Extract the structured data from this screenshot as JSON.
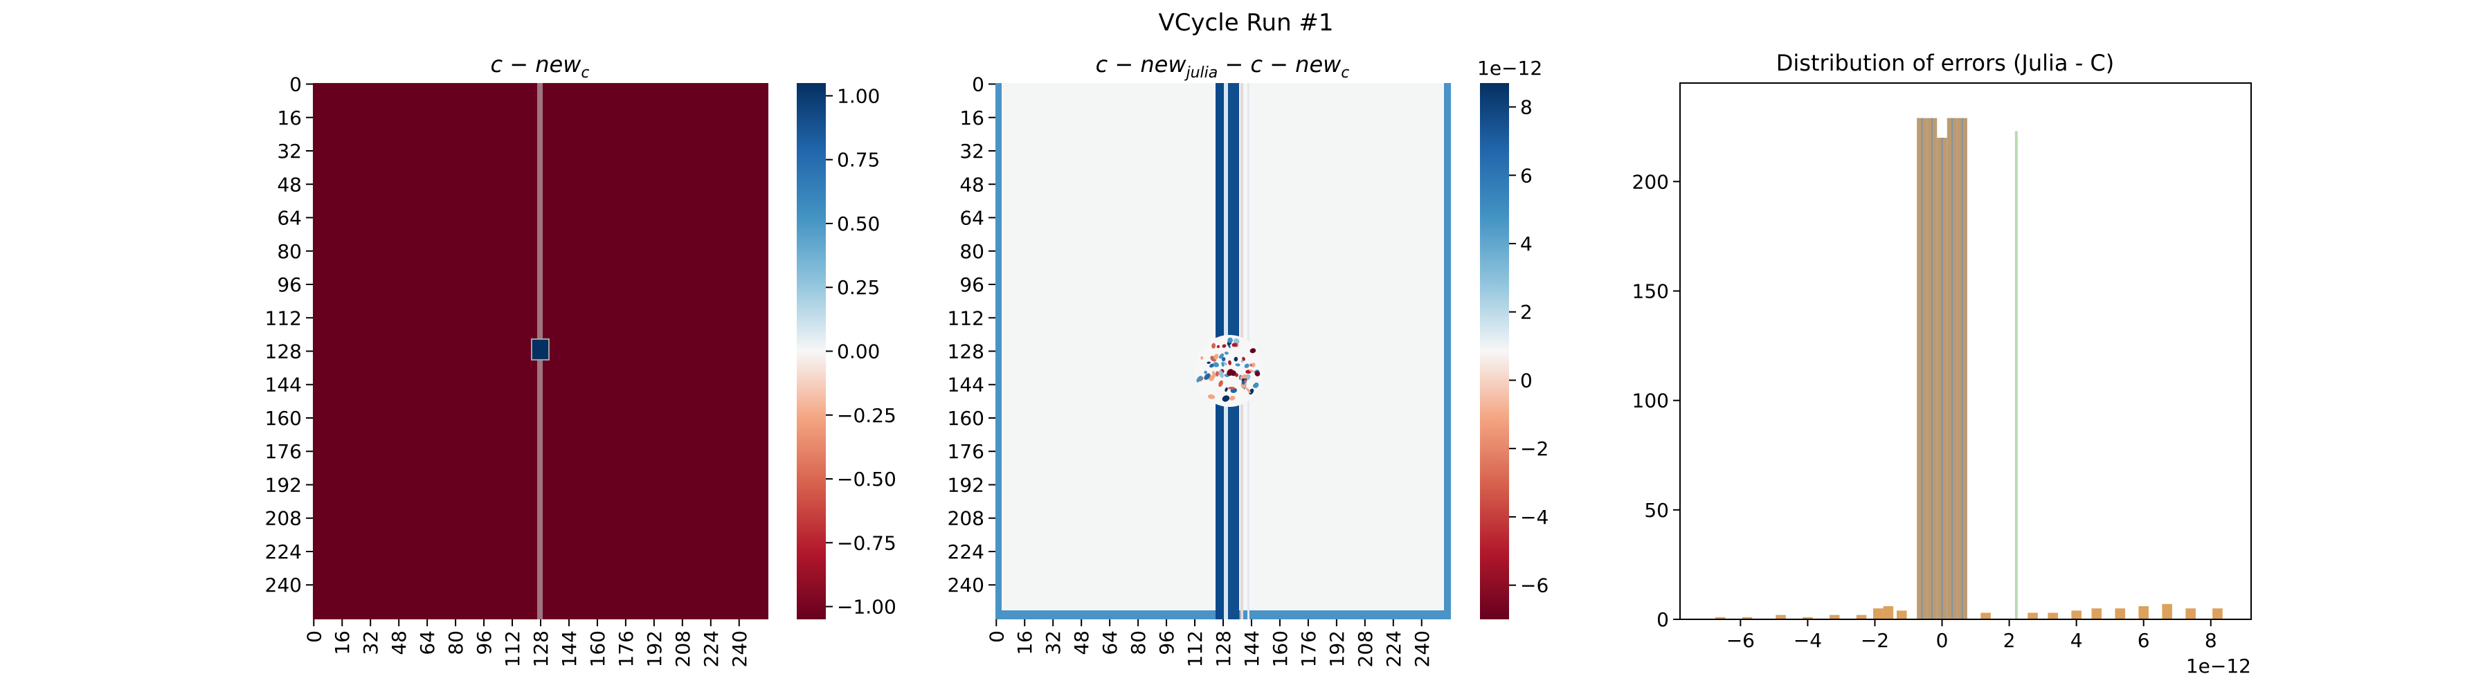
{
  "figure": {
    "title": "VCycle Run #1"
  },
  "colors": {
    "cmap_low": "#67001f",
    "cmap_mid": "#f7f7f7",
    "cmap_high": "#053061",
    "bar_orange": "#d6903f",
    "bar_green": "#7bbf73",
    "bar_blue": "#5b8fc2"
  },
  "chart_data": [
    {
      "type": "heatmap",
      "title": "c - new_c",
      "title_parts": {
        "base": "c − new",
        "sub": "c"
      },
      "y_ticks": [
        "0",
        "16",
        "32",
        "48",
        "64",
        "80",
        "96",
        "112",
        "128",
        "144",
        "160",
        "176",
        "192",
        "208",
        "224",
        "240"
      ],
      "x_ticks": [
        "0",
        "16",
        "32",
        "48",
        "64",
        "80",
        "96",
        "112",
        "128",
        "144",
        "160",
        "176",
        "192",
        "208",
        "224",
        "240"
      ],
      "grid_size": 257,
      "background_value": -1.0,
      "features": [
        {
          "kind": "column",
          "col": 128,
          "value": 0.0
        },
        {
          "kind": "block",
          "row": 128,
          "col": 128,
          "value": 1.0
        }
      ],
      "colorbar": {
        "min": -1.0,
        "max": 1.0,
        "ticks": [
          1.0,
          0.75,
          0.5,
          0.25,
          0.0,
          -0.25,
          -0.5,
          -0.75,
          -1.0
        ],
        "tick_labels": [
          "1.00",
          "0.75",
          "0.50",
          "0.25",
          "0.00",
          "−0.25",
          "−0.50",
          "−0.75",
          "−1.00"
        ]
      }
    },
    {
      "type": "heatmap",
      "title": "c - new_julia - c - new_c",
      "title_parts": {
        "base1": "c − new",
        "sub1": "julia",
        "base2": " − c − new",
        "sub2": "c"
      },
      "y_ticks": [
        "0",
        "16",
        "32",
        "48",
        "64",
        "80",
        "96",
        "112",
        "128",
        "144",
        "160",
        "176",
        "192",
        "208",
        "224",
        "240"
      ],
      "x_ticks": [
        "0",
        "16",
        "32",
        "48",
        "64",
        "80",
        "96",
        "112",
        "128",
        "144",
        "160",
        "176",
        "192",
        "208",
        "224",
        "240"
      ],
      "grid_size": 257,
      "background_value": 0.0,
      "features": [
        {
          "kind": "border",
          "value": 4e-12
        },
        {
          "kind": "column_band",
          "col_start": 120,
          "col_end": 134,
          "value": 8e-12
        },
        {
          "kind": "noise_patch",
          "row_center": 135,
          "col_center": 130,
          "radius": 20,
          "range": [
            -7e-12,
            8e-12
          ]
        }
      ],
      "colorbar": {
        "min": -7e-12,
        "max": 8.7e-12,
        "ticks": [
          8,
          6,
          4,
          2,
          0,
          -2,
          -4,
          -6
        ],
        "tick_labels": [
          "8",
          "6",
          "4",
          "2",
          "0",
          "−2",
          "−4",
          "−6"
        ],
        "offset_label": "1e−12"
      }
    },
    {
      "type": "bar",
      "title": "Distribution of errors (Julia - C)",
      "xlim": [
        -7.8e-12,
        9.2e-12
      ],
      "ylim": [
        0,
        245
      ],
      "x_ticks": [
        -6,
        -4,
        -2,
        0,
        2,
        4,
        6,
        8
      ],
      "x_tick_labels": [
        "−6",
        "−4",
        "−2",
        "0",
        "2",
        "4",
        "6",
        "8"
      ],
      "x_offset_label": "1e−12",
      "y_ticks": [
        0,
        50,
        100,
        150,
        200
      ],
      "y_tick_labels": [
        "0",
        "50",
        "100",
        "150",
        "200"
      ],
      "bars": [
        {
          "x": -6.6,
          "value": 1
        },
        {
          "x": -5.8,
          "value": 1
        },
        {
          "x": -4.8,
          "value": 2
        },
        {
          "x": -4.0,
          "value": 1
        },
        {
          "x": -3.2,
          "value": 2
        },
        {
          "x": -2.4,
          "value": 2
        },
        {
          "x": -1.9,
          "value": 5
        },
        {
          "x": -1.6,
          "value": 6
        },
        {
          "x": -1.2,
          "value": 4
        },
        {
          "x": -0.6,
          "value": 229
        },
        {
          "x": -0.3,
          "value": 229
        },
        {
          "x": 0.0,
          "value": 220
        },
        {
          "x": 0.3,
          "value": 229
        },
        {
          "x": 0.6,
          "value": 229
        },
        {
          "x": 1.3,
          "value": 3
        },
        {
          "x": 2.2,
          "value": 223
        },
        {
          "x": 2.7,
          "value": 3
        },
        {
          "x": 3.3,
          "value": 3
        },
        {
          "x": 4.0,
          "value": 4
        },
        {
          "x": 4.6,
          "value": 5
        },
        {
          "x": 5.3,
          "value": 5
        },
        {
          "x": 6.0,
          "value": 6
        },
        {
          "x": 6.7,
          "value": 7
        },
        {
          "x": 7.4,
          "value": 5
        },
        {
          "x": 8.2,
          "value": 5
        }
      ]
    }
  ]
}
